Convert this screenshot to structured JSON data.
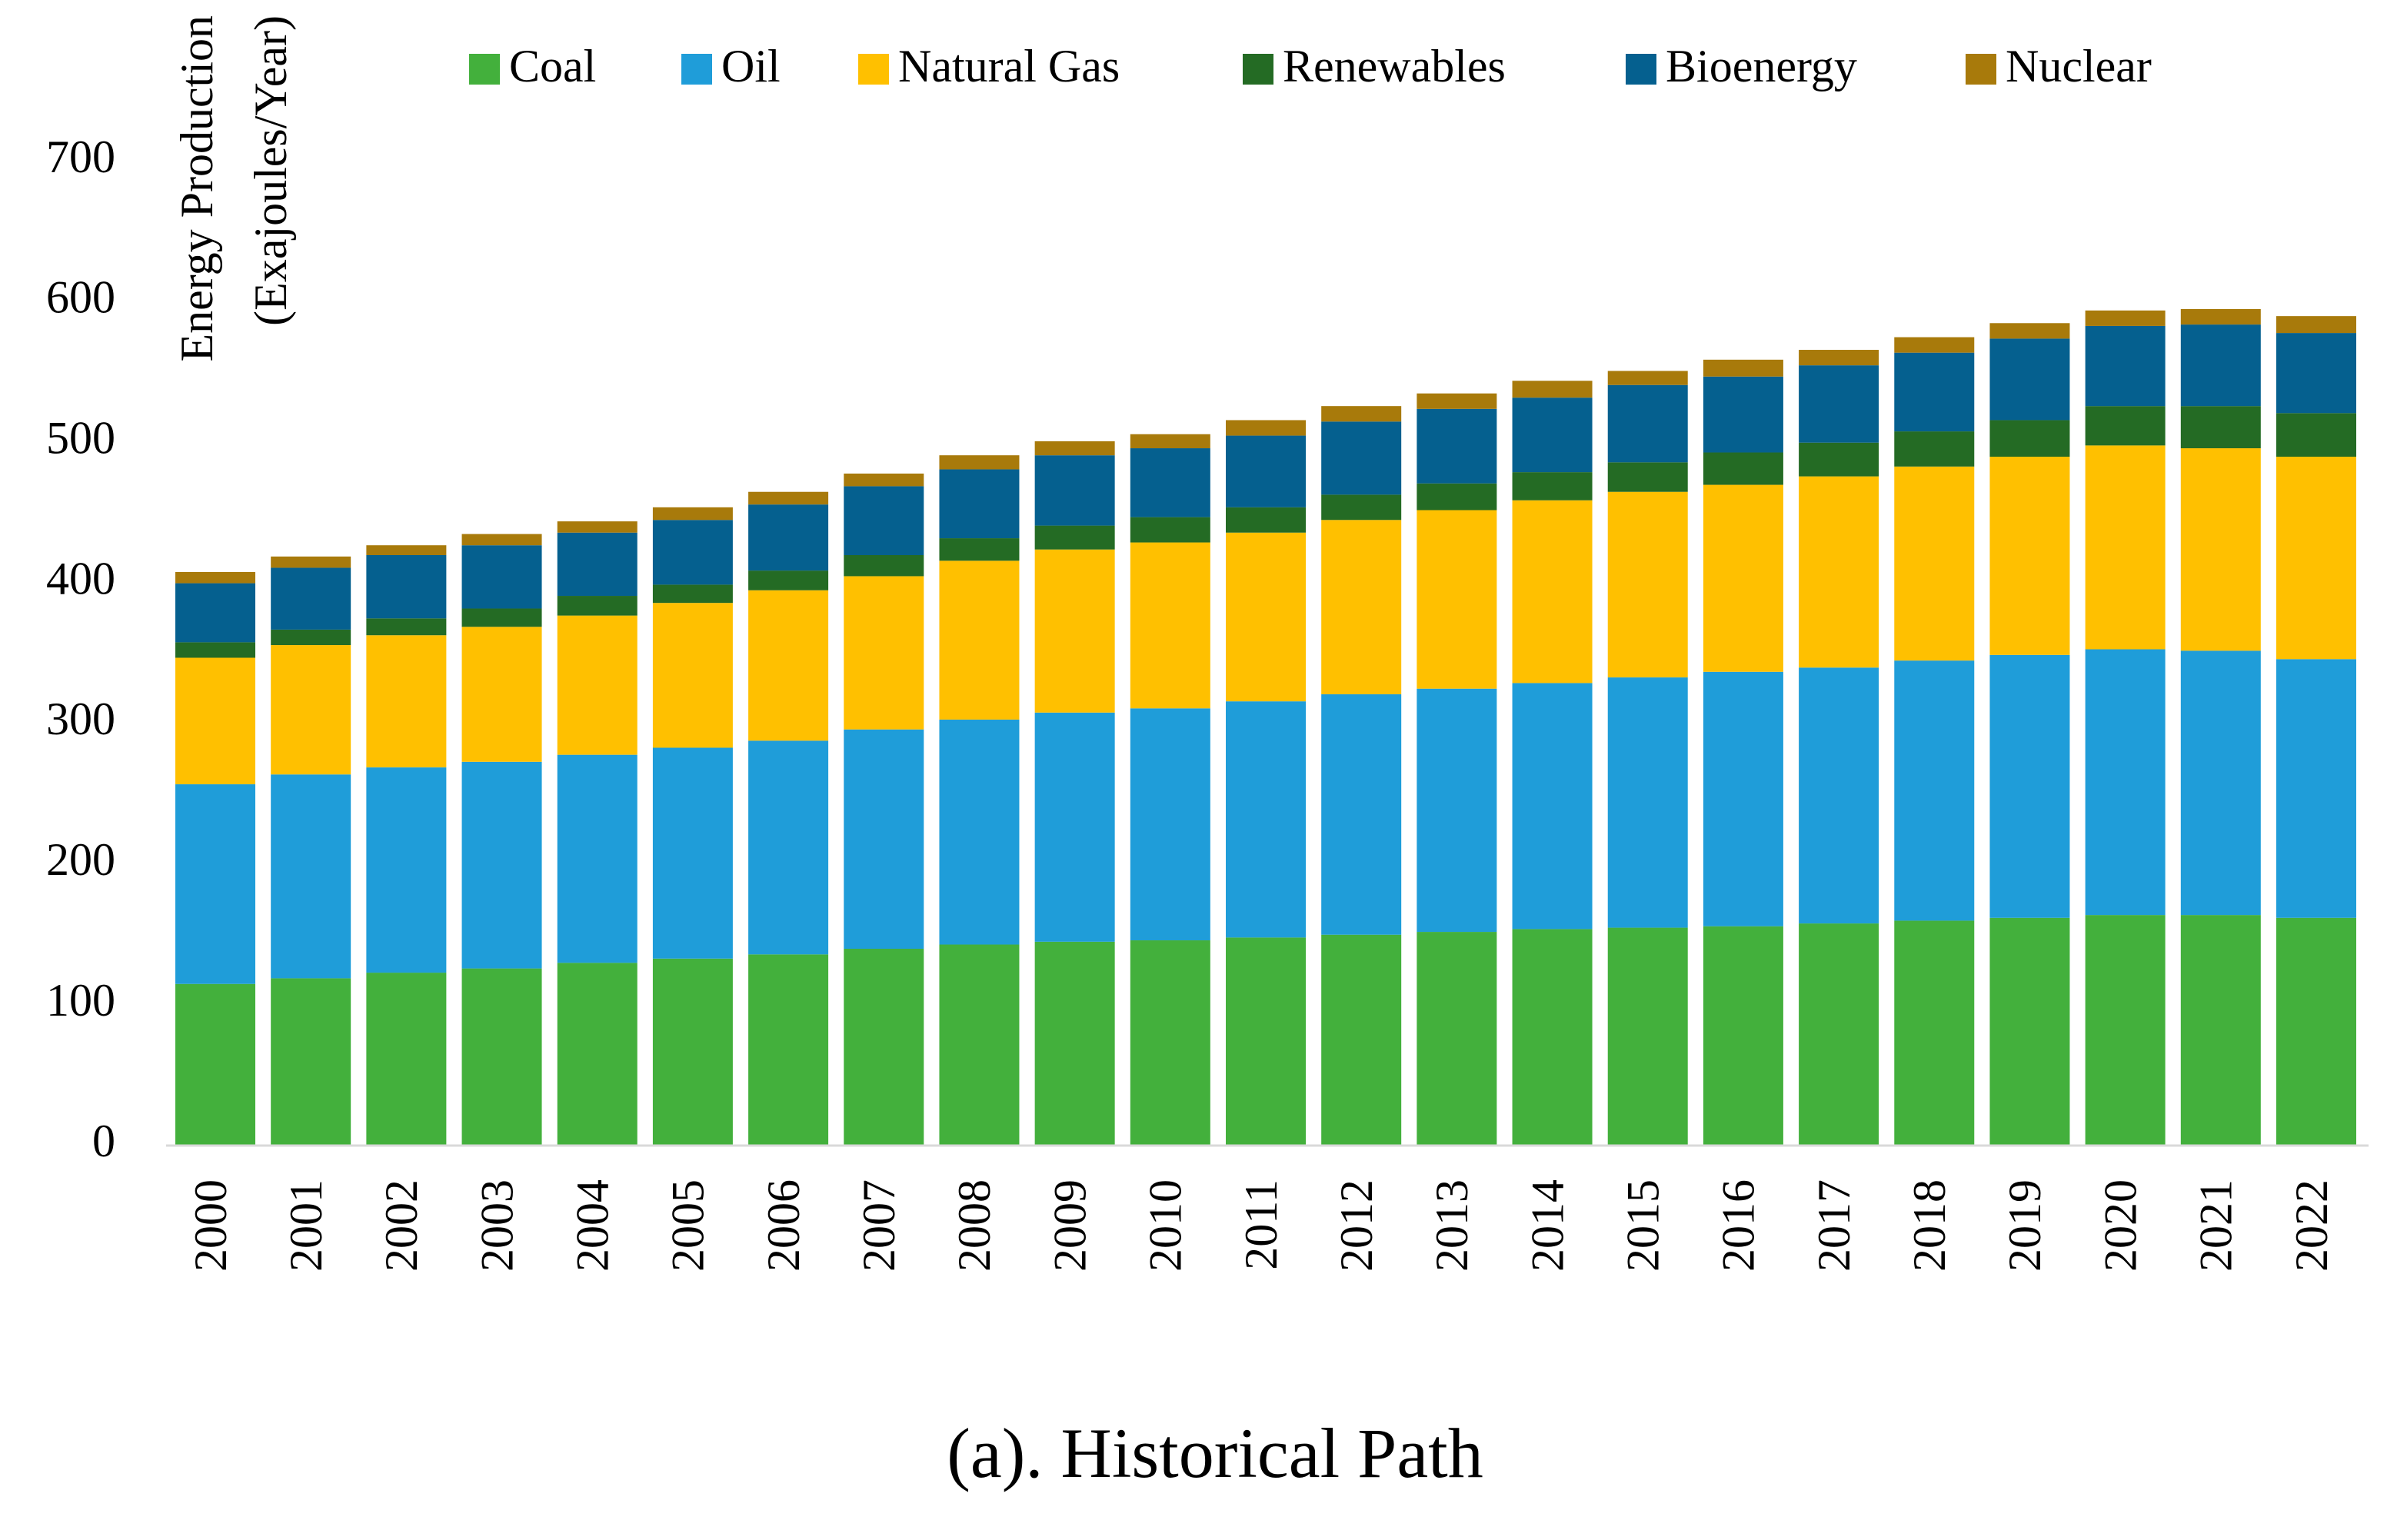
{
  "chart_data": {
    "type": "stacked-bar",
    "title": "(a). Historical Path",
    "ylabel": [
      "Energy Production",
      "(Exajoules/Year)"
    ],
    "categories": [
      "2000",
      "2001",
      "2002",
      "2003",
      "2004",
      "2005",
      "2006",
      "2007",
      "2008",
      "2009",
      "2010",
      "2011",
      "2012",
      "2013",
      "2014",
      "2015",
      "2016",
      "2017",
      "2018",
      "2019",
      "2020",
      "2021",
      "2022"
    ],
    "series": [
      {
        "name": "Coal",
        "color": "#43b03c",
        "values": [
          115,
          119,
          123,
          126,
          130,
          133,
          136,
          140,
          143,
          145,
          146,
          148,
          150,
          152,
          154,
          155,
          156,
          158,
          160,
          162,
          164,
          164,
          162
        ]
      },
      {
        "name": "Oil",
        "color": "#1f9dd9",
        "values": [
          142,
          145,
          146,
          147,
          148,
          150,
          152,
          156,
          160,
          163,
          165,
          168,
          171,
          173,
          175,
          178,
          181,
          182,
          185,
          187,
          189,
          188,
          184
        ]
      },
      {
        "name": "Natural Gas",
        "color": "#ffc000",
        "values": [
          90,
          92,
          94,
          96,
          99,
          103,
          107,
          109,
          113,
          116,
          118,
          120,
          124,
          127,
          130,
          132,
          133,
          136,
          138,
          141,
          145,
          144,
          144
        ]
      },
      {
        "name": "Renewables",
        "color": "#246b24",
        "values": [
          11,
          11,
          12,
          13,
          14,
          13,
          14,
          15,
          16,
          17,
          18,
          18,
          18,
          19,
          20,
          21,
          23,
          24,
          25,
          26,
          28,
          30,
          31
        ]
      },
      {
        "name": "Bioenergy",
        "color": "#05608f",
        "values": [
          42,
          44,
          45,
          45,
          45,
          46,
          47,
          49,
          49,
          50,
          49,
          51,
          52,
          53,
          53,
          55,
          54,
          55,
          56,
          58,
          57,
          58,
          57
        ]
      },
      {
        "name": "Nuclear",
        "color": "#a87a0b",
        "values": [
          8,
          8,
          7,
          8,
          8,
          9,
          9,
          9,
          10,
          10,
          10,
          11,
          11,
          11,
          12,
          10,
          12,
          11,
          11,
          11,
          11,
          11,
          12
        ]
      }
    ],
    "ylim": [
      0,
      700
    ],
    "yticks": [
      0,
      100,
      200,
      300,
      400,
      500,
      600,
      700
    ],
    "grid": false,
    "legend": "top"
  }
}
